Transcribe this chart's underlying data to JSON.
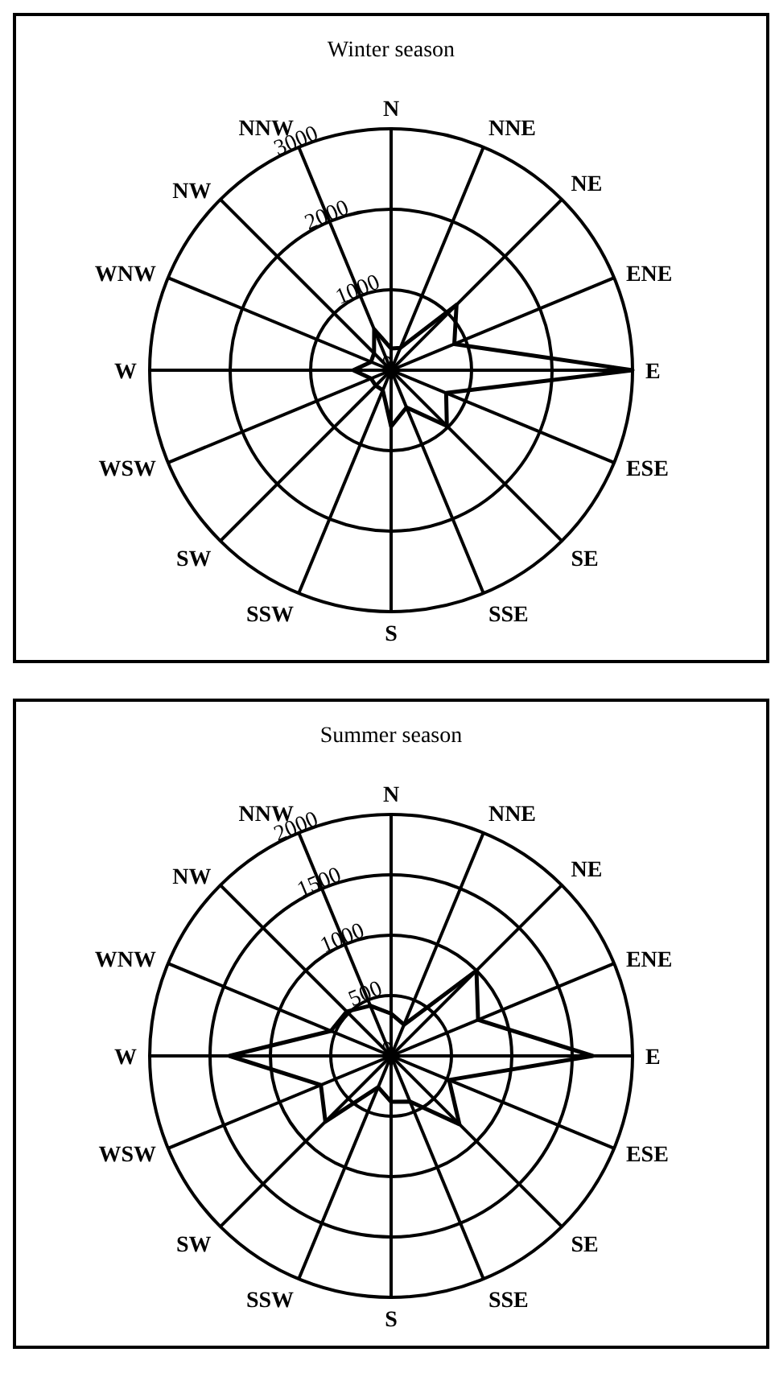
{
  "chart_data": [
    {
      "type": "radar",
      "title": "Winter season",
      "categories": [
        "N",
        "NNE",
        "NE",
        "ENE",
        "E",
        "ESE",
        "SE",
        "SSE",
        "S",
        "SSW",
        "SW",
        "WSW",
        "W",
        "WNW",
        "NW",
        "NNW"
      ],
      "series": [
        {
          "color": "#000000",
          "values": [
            270,
            300,
            1150,
            850,
            3000,
            740,
            980,
            500,
            700,
            270,
            270,
            270,
            470,
            270,
            300,
            550
          ]
        }
      ],
      "ylim": [
        0,
        3000
      ],
      "yticks": [
        0,
        1000,
        2000,
        3000
      ],
      "grid": true,
      "legend": false,
      "marker": "none"
    },
    {
      "type": "radar",
      "title": "Summer season",
      "categories": [
        "N",
        "NNE",
        "NE",
        "ENE",
        "E",
        "ESE",
        "SE",
        "SSE",
        "S",
        "SSW",
        "SW",
        "WSW",
        "W",
        "WNW",
        "NW",
        "NNW"
      ],
      "series": [
        {
          "color": "#000000",
          "values": [
            350,
            280,
            1000,
            780,
            1670,
            520,
            800,
            410,
            380,
            280,
            770,
            630,
            1340,
            540,
            520,
            450
          ]
        }
      ],
      "ylim": [
        0,
        2000
      ],
      "yticks": [
        0,
        500,
        1000,
        1500,
        2000
      ],
      "grid": true,
      "legend": false,
      "marker": "none"
    }
  ]
}
